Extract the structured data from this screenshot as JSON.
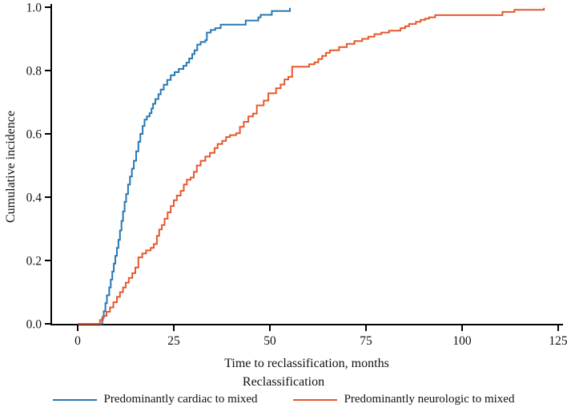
{
  "chart_data": {
    "type": "line",
    "subtype": "step-function-cumulative-incidence",
    "title": "",
    "xlabel": "Time to reclassification, months",
    "ylabel": "Cumulative incidence",
    "xlim": [
      0,
      125
    ],
    "ylim": [
      0.0,
      1.0
    ],
    "xticks": [
      0,
      25,
      50,
      75,
      100,
      125
    ],
    "ytick_labels": [
      "0.0",
      "0.2",
      "0.4",
      "0.6",
      "0.8",
      "1.0"
    ],
    "ytick_values": [
      0.0,
      0.2,
      0.4,
      0.6,
      0.8,
      1.0
    ],
    "grid": false,
    "legend_position": "bottom-center",
    "legend_title": "Reclassification",
    "axis_color": "#000000",
    "series": [
      {
        "name": "Predominantly cardiac to mixed",
        "color": "#2878b4",
        "points": [
          [
            0,
            0
          ],
          [
            6.2,
            0
          ],
          [
            6.4,
            0.02
          ],
          [
            6.8,
            0.04
          ],
          [
            7.2,
            0.065
          ],
          [
            7.6,
            0.09
          ],
          [
            8.2,
            0.115
          ],
          [
            8.6,
            0.14
          ],
          [
            9.0,
            0.165
          ],
          [
            9.4,
            0.19
          ],
          [
            9.8,
            0.215
          ],
          [
            10.2,
            0.24
          ],
          [
            10.6,
            0.265
          ],
          [
            11.0,
            0.295
          ],
          [
            11.4,
            0.325
          ],
          [
            11.8,
            0.355
          ],
          [
            12.2,
            0.385
          ],
          [
            12.6,
            0.41
          ],
          [
            13.1,
            0.44
          ],
          [
            13.6,
            0.465
          ],
          [
            14.1,
            0.49
          ],
          [
            14.6,
            0.515
          ],
          [
            15.2,
            0.545
          ],
          [
            15.8,
            0.575
          ],
          [
            16.3,
            0.6
          ],
          [
            16.9,
            0.625
          ],
          [
            17.4,
            0.645
          ],
          [
            18.0,
            0.655
          ],
          [
            18.7,
            0.665
          ],
          [
            19.2,
            0.68
          ],
          [
            19.6,
            0.695
          ],
          [
            20.2,
            0.71
          ],
          [
            21.0,
            0.725
          ],
          [
            21.6,
            0.74
          ],
          [
            22.4,
            0.755
          ],
          [
            23.3,
            0.77
          ],
          [
            24.2,
            0.785
          ],
          [
            25.2,
            0.795
          ],
          [
            26.3,
            0.805
          ],
          [
            27.5,
            0.815
          ],
          [
            28.3,
            0.825
          ],
          [
            29.0,
            0.838
          ],
          [
            29.8,
            0.852
          ],
          [
            30.4,
            0.864
          ],
          [
            31.1,
            0.882
          ],
          [
            32.0,
            0.89
          ],
          [
            33.2,
            0.896
          ],
          [
            33.6,
            0.92
          ],
          [
            34.6,
            0.928
          ],
          [
            35.8,
            0.934
          ],
          [
            37.2,
            0.945
          ],
          [
            43.7,
            0.958
          ],
          [
            47.0,
            0.968
          ],
          [
            47.6,
            0.976
          ],
          [
            50.5,
            0.988
          ],
          [
            55.2,
            0.998
          ]
        ]
      },
      {
        "name": "Predominantly neurologic to mixed",
        "color": "#e4592e",
        "points": [
          [
            0,
            0
          ],
          [
            5.4,
            0
          ],
          [
            5.8,
            0.012
          ],
          [
            6.6,
            0.025
          ],
          [
            7.5,
            0.038
          ],
          [
            8.4,
            0.052
          ],
          [
            9.3,
            0.068
          ],
          [
            10.2,
            0.085
          ],
          [
            11.0,
            0.1
          ],
          [
            11.8,
            0.115
          ],
          [
            12.5,
            0.13
          ],
          [
            13.3,
            0.145
          ],
          [
            14.2,
            0.16
          ],
          [
            15.0,
            0.178
          ],
          [
            15.8,
            0.21
          ],
          [
            16.8,
            0.222
          ],
          [
            17.8,
            0.232
          ],
          [
            19.0,
            0.24
          ],
          [
            19.8,
            0.252
          ],
          [
            20.6,
            0.278
          ],
          [
            21.2,
            0.298
          ],
          [
            21.9,
            0.312
          ],
          [
            22.6,
            0.332
          ],
          [
            23.4,
            0.352
          ],
          [
            24.2,
            0.372
          ],
          [
            25.0,
            0.39
          ],
          [
            25.8,
            0.405
          ],
          [
            26.8,
            0.42
          ],
          [
            27.6,
            0.44
          ],
          [
            28.4,
            0.455
          ],
          [
            29.4,
            0.462
          ],
          [
            30.2,
            0.48
          ],
          [
            31.0,
            0.5
          ],
          [
            32.0,
            0.515
          ],
          [
            33.2,
            0.528
          ],
          [
            34.4,
            0.54
          ],
          [
            35.6,
            0.555
          ],
          [
            36.4,
            0.568
          ],
          [
            37.6,
            0.578
          ],
          [
            38.6,
            0.59
          ],
          [
            39.6,
            0.596
          ],
          [
            41.2,
            0.602
          ],
          [
            42.2,
            0.622
          ],
          [
            43.2,
            0.638
          ],
          [
            44.4,
            0.655
          ],
          [
            45.6,
            0.664
          ],
          [
            46.6,
            0.69
          ],
          [
            48.4,
            0.705
          ],
          [
            49.6,
            0.728
          ],
          [
            51.6,
            0.744
          ],
          [
            52.8,
            0.756
          ],
          [
            53.8,
            0.772
          ],
          [
            54.8,
            0.78
          ],
          [
            55.8,
            0.812
          ],
          [
            60.2,
            0.82
          ],
          [
            61.6,
            0.826
          ],
          [
            62.6,
            0.836
          ],
          [
            63.6,
            0.846
          ],
          [
            64.6,
            0.856
          ],
          [
            65.6,
            0.864
          ],
          [
            68.0,
            0.874
          ],
          [
            70.0,
            0.884
          ],
          [
            72.0,
            0.893
          ],
          [
            74.0,
            0.9
          ],
          [
            75.6,
            0.907
          ],
          [
            77.2,
            0.915
          ],
          [
            79.0,
            0.92
          ],
          [
            81.0,
            0.926
          ],
          [
            84.0,
            0.934
          ],
          [
            85.2,
            0.94
          ],
          [
            86.2,
            0.947
          ],
          [
            88.0,
            0.954
          ],
          [
            89.2,
            0.96
          ],
          [
            90.4,
            0.964
          ],
          [
            91.4,
            0.968
          ],
          [
            93.0,
            0.975
          ],
          [
            110.5,
            0.985
          ],
          [
            113.6,
            0.992
          ],
          [
            121.3,
            0.998
          ]
        ]
      }
    ]
  }
}
